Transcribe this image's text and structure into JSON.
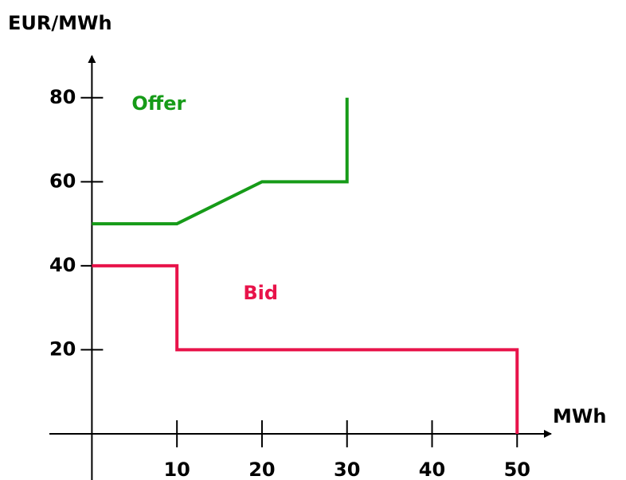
{
  "chart_data": {
    "type": "line",
    "y_label": "EUR/MWh",
    "x_label": "MWh",
    "series": [
      {
        "name": "Offer",
        "color": "#169b18",
        "x": [
          0,
          10,
          20,
          30,
          30
        ],
        "values": [
          50,
          50,
          60,
          60,
          80
        ]
      },
      {
        "name": "Bid",
        "color": "#e8134a",
        "x": [
          0,
          10,
          10,
          50,
          50
        ],
        "values": [
          40,
          40,
          20,
          20,
          0
        ]
      }
    ],
    "xlim": [
      -5,
      54
    ],
    "ylim": [
      -11,
      90
    ],
    "xticks": [
      10,
      20,
      30,
      40,
      50
    ],
    "yticks": [
      20,
      40,
      60,
      80
    ],
    "grid": false
  }
}
